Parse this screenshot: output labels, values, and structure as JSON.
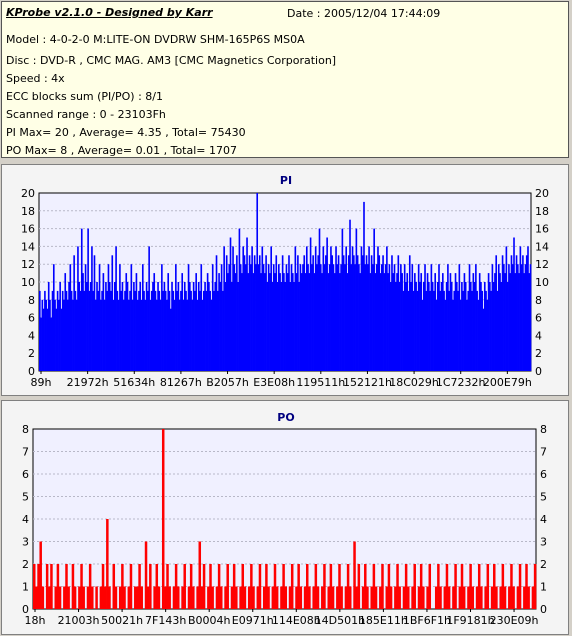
{
  "header": {
    "title": "KProbe v2.1.0 - Designed by Karr",
    "date": "Date : 2005/12/04 17:44:09",
    "model": "Model : 4-0-2-0 M:LITE-ON DVDRW SHM-165P6S MS0A",
    "disc": "Disc : DVD-R , CMC MAG. AM3 [CMC Magnetics Corporation]",
    "speed": "Speed : 4x",
    "ecc": "ECC blocks sum (PI/PO) : 8/1",
    "range": "Scanned range : 0 - 23103Fh",
    "pi_stats": "PI Max= 20 , Average= 4.35 , Total= 75430",
    "po_stats": "PO Max= 8 , Average= 0.01 , Total= 1707"
  },
  "colors": {
    "pi_fill": "#0000ff",
    "po_fill": "#ff0000",
    "plot_bg": "#f0f0ff",
    "grid": "#b8b8c8"
  },
  "chart_data": [
    {
      "type": "bar",
      "title": "PI",
      "ylim": [
        0,
        20
      ],
      "yticks": [
        0,
        2,
        4,
        6,
        8,
        10,
        12,
        14,
        16,
        18,
        20
      ],
      "grid": true,
      "x_ticks": [
        "89h",
        "21972h",
        "51634h",
        "81267h",
        "B2057h",
        "E3E08h",
        "119511h",
        "152121h",
        "18C029h",
        "1C7232h",
        "200E79h"
      ],
      "series": [
        {
          "values": [
            9,
            6,
            8,
            7,
            9,
            8,
            7,
            10,
            8,
            6,
            9,
            12,
            8,
            7,
            9,
            8,
            10,
            7,
            9,
            8,
            11,
            9,
            8,
            10,
            12,
            9,
            8,
            13,
            9,
            8,
            14,
            10,
            9,
            16,
            11,
            9,
            12,
            10,
            16,
            9,
            10,
            14,
            9,
            13,
            8,
            10,
            9,
            12,
            8,
            9,
            11,
            8,
            10,
            9,
            12,
            10,
            9,
            13,
            8,
            10,
            14,
            9,
            8,
            12,
            9,
            10,
            8,
            9,
            11,
            10,
            8,
            9,
            12,
            8,
            10,
            9,
            11,
            8,
            9,
            10,
            8,
            12,
            9,
            8,
            10,
            9,
            14,
            8,
            9,
            10,
            11,
            9,
            8,
            10,
            9,
            8,
            12,
            9,
            10,
            9,
            8,
            11,
            9,
            7,
            10,
            9,
            8,
            12,
            9,
            10,
            8,
            9,
            11,
            8,
            10,
            9,
            8,
            12,
            10,
            9,
            8,
            10,
            9,
            11,
            8,
            10,
            9,
            12,
            8,
            9,
            10,
            9,
            11,
            10,
            9,
            8,
            12,
            9,
            10,
            13,
            9,
            11,
            10,
            12,
            9,
            14,
            10,
            13,
            11,
            12,
            15,
            10,
            14,
            12,
            11,
            13,
            10,
            16,
            12,
            11,
            14,
            13,
            12,
            15,
            11,
            13,
            12,
            14,
            11,
            13,
            12,
            20,
            12,
            13,
            11,
            14,
            12,
            11,
            13,
            10,
            12,
            11,
            14,
            10,
            12,
            11,
            13,
            10,
            12,
            11,
            10,
            13,
            11,
            10,
            12,
            11,
            13,
            10,
            12,
            11,
            10,
            14,
            11,
            13,
            10,
            12,
            11,
            12,
            13,
            11,
            14,
            12,
            11,
            15,
            12,
            13,
            11,
            14,
            12,
            13,
            16,
            12,
            11,
            14,
            12,
            13,
            15,
            11,
            12,
            14,
            13,
            12,
            11,
            14,
            12,
            13,
            11,
            12,
            16,
            13,
            12,
            14,
            11,
            13,
            17,
            12,
            14,
            13,
            12,
            16,
            13,
            12,
            11,
            14,
            13,
            19,
            12,
            13,
            12,
            14,
            11,
            13,
            12,
            16,
            11,
            12,
            14,
            13,
            11,
            12,
            13,
            11,
            12,
            14,
            11,
            12,
            10,
            13,
            11,
            12,
            10,
            11,
            13,
            10,
            12,
            11,
            9,
            12,
            10,
            11,
            9,
            13,
            10,
            12,
            9,
            11,
            10,
            9,
            12,
            10,
            11,
            8,
            10,
            12,
            9,
            11,
            10,
            9,
            12,
            10,
            9,
            11,
            8,
            10,
            12,
            9,
            10,
            11,
            9,
            8,
            10,
            12,
            9,
            11,
            10,
            8,
            9,
            11,
            10,
            9,
            12,
            8,
            10,
            9,
            11,
            10,
            8,
            9,
            12,
            10,
            9,
            11,
            10,
            12,
            9,
            8,
            11,
            10,
            9,
            7,
            10,
            9,
            8,
            11,
            10,
            9,
            12,
            10,
            11,
            13,
            9,
            12,
            11,
            10,
            13,
            12,
            11,
            14,
            10,
            12,
            11,
            13,
            12,
            15,
            11,
            13,
            12,
            11,
            14,
            12,
            13,
            11,
            12,
            13,
            14,
            11,
            12
          ]
        }
      ]
    },
    {
      "type": "bar",
      "title": "PO",
      "ylim": [
        0,
        8
      ],
      "yticks": [
        0,
        1,
        2,
        3,
        4,
        5,
        6,
        7,
        8
      ],
      "grid": true,
      "x_ticks": [
        "18h",
        "21003h",
        "50021h",
        "7F143h",
        "B0004h",
        "E0971h",
        "114E08h",
        "14D501h",
        "185E11h",
        "1BF6F1h",
        "1F9181h",
        "230E09h"
      ],
      "series": [
        {
          "values": [
            2,
            1,
            2,
            3,
            1,
            0,
            2,
            1,
            2,
            0,
            1,
            2,
            1,
            0,
            1,
            2,
            1,
            0,
            2,
            1,
            0,
            1,
            2,
            1,
            0,
            1,
            2,
            1,
            0,
            1,
            0,
            1,
            2,
            1,
            4,
            1,
            0,
            2,
            1,
            0,
            1,
            2,
            1,
            0,
            1,
            2,
            0,
            1,
            1,
            2,
            1,
            0,
            3,
            1,
            2,
            0,
            1,
            2,
            1,
            0,
            8,
            1,
            2,
            1,
            0,
            1,
            2,
            1,
            0,
            1,
            2,
            0,
            1,
            2,
            1,
            0,
            1,
            3,
            1,
            2,
            0,
            1,
            2,
            1,
            0,
            1,
            2,
            1,
            0,
            1,
            2,
            0,
            1,
            2,
            1,
            0,
            1,
            2,
            1,
            0,
            1,
            2,
            1,
            0,
            1,
            2,
            0,
            1,
            2,
            1,
            0,
            1,
            2,
            1,
            0,
            1,
            2,
            1,
            0,
            1,
            2,
            0,
            1,
            2,
            1,
            0,
            1,
            2,
            1,
            0,
            1,
            2,
            1,
            0,
            1,
            2,
            0,
            1,
            2,
            1,
            0,
            1,
            2,
            1,
            0,
            1,
            2,
            1,
            0,
            3,
            1,
            2,
            0,
            1,
            2,
            1,
            0,
            1,
            2,
            1,
            0,
            1,
            2,
            0,
            1,
            2,
            1,
            0,
            1,
            2,
            1,
            0,
            1,
            2,
            1,
            0,
            1,
            2,
            0,
            1,
            2,
            1,
            0,
            1,
            2,
            0,
            0,
            1,
            2,
            1,
            0,
            1,
            2,
            1,
            0,
            1,
            2,
            0,
            1,
            2,
            1,
            0,
            1,
            2,
            1,
            0,
            1,
            2,
            1,
            0,
            1,
            2,
            0,
            1,
            2,
            1,
            0,
            1,
            2,
            1,
            0,
            1,
            2,
            1,
            0,
            1,
            2,
            0,
            1,
            2,
            1,
            0,
            1,
            2
          ]
        }
      ]
    }
  ]
}
